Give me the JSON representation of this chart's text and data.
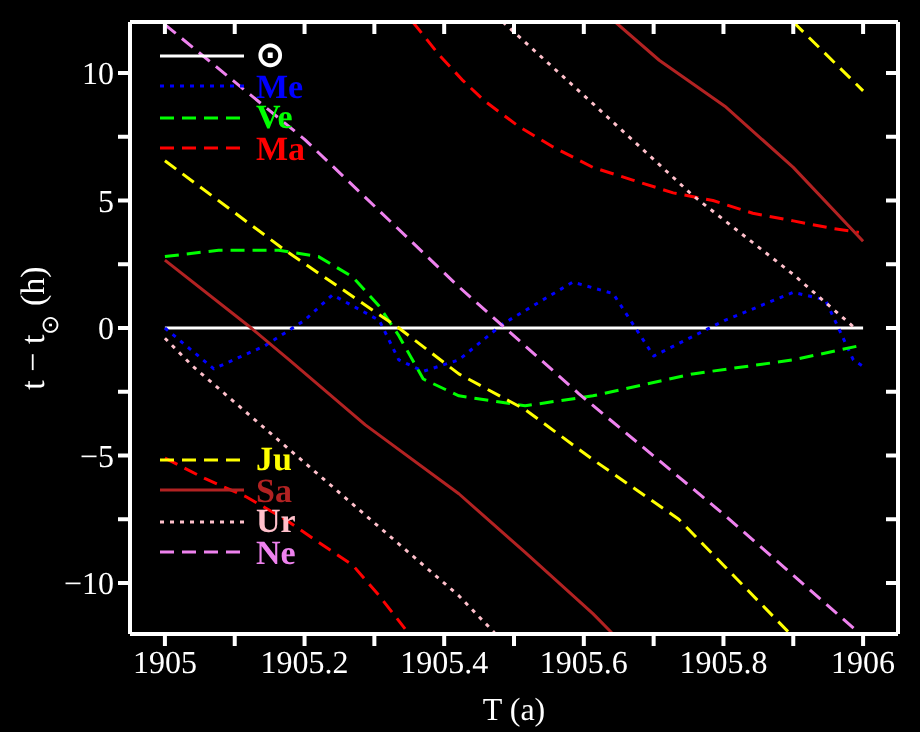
{
  "chart_data": {
    "type": "line",
    "xlabel": "T (a)",
    "ylabel": "t − t$_{⊙}$ (h)",
    "xlim": [
      1904.95,
      1906.05
    ],
    "ylim": [
      -12,
      12
    ],
    "xticks": [
      1905,
      {
        "value": 1905.1,
        "label": null
      },
      {
        "value": 1905.2,
        "label": "1905.2"
      },
      {
        "value": 1905.3,
        "label": null
      },
      {
        "value": 1905.4,
        "label": "1905.4"
      },
      {
        "value": 1905.5,
        "label": null
      },
      {
        "value": 1905.6,
        "label": "1905.6"
      },
      {
        "value": 1905.7,
        "label": null
      },
      {
        "value": 1905.8,
        "label": "1905.8"
      },
      {
        "value": 1905.9,
        "label": null
      },
      1906
    ],
    "yticks": [
      -10,
      {
        "value": -7.5,
        "label": null
      },
      -5,
      {
        "value": -2.5,
        "label": null
      },
      0,
      {
        "value": 2.5,
        "label": null
      },
      5,
      {
        "value": 7.5,
        "label": null
      },
      10
    ],
    "legend": "left",
    "marker": "none",
    "series": [
      {
        "name": "⊙",
        "color": "#ffffff",
        "line_style": "solid",
        "x": [
          1905,
          1906
        ],
        "values": [
          0,
          0
        ]
      },
      {
        "name": "Me",
        "color": "#0000ff",
        "line_style": "dotted",
        "x": [
          1905,
          1905.07,
          1905.143,
          1905.2,
          1905.24,
          1905.307,
          1905.335,
          1905.37,
          1905.421,
          1905.484,
          1905.584,
          1905.642,
          1905.7,
          1905.802,
          1905.9,
          1905.946,
          1905.986,
          1906
        ],
        "values": [
          0,
          -1.6,
          -0.7,
          0.3,
          1.3,
          0.3,
          -1.25,
          -1.7,
          -1.25,
          0.16,
          1.8,
          1.35,
          -1.1,
          0.3,
          1.4,
          1.1,
          -1.25,
          -1.5
        ]
      },
      {
        "name": "Ve",
        "color": "#00ff00",
        "line_style": "dashed",
        "x": [
          1905,
          1905.077,
          1905.163,
          1905.22,
          1905.269,
          1905.307,
          1905.335,
          1905.37,
          1905.421,
          1905.516,
          1905.613,
          1905.756,
          1905.9,
          1905.994
        ],
        "values": [
          2.8,
          3.05,
          3.05,
          2.8,
          2,
          0.85,
          -0.3,
          -2,
          -2.66,
          -3.05,
          -2.66,
          -1.8,
          -1.25,
          -0.7
        ]
      },
      {
        "name": "Ma",
        "color": "#ff0000",
        "line_style": "dashed",
        "x": [
          1905,
          1905.057,
          1905.115,
          1905.172,
          1905.22,
          1905.269,
          1905.307,
          1905.344,
          1905.35,
          1905.355,
          1905.393,
          1905.427,
          1905.458,
          1905.507,
          1905.556,
          1905.613,
          1905.67,
          1905.728,
          1905.785,
          1905.842,
          1905.9,
          1905.957,
          1905.994
        ],
        "values": [
          -5.1,
          -5.9,
          -6.6,
          -7.5,
          -8.4,
          -9.3,
          -10.5,
          -11.8,
          null,
          12,
          10.7,
          9.7,
          8.9,
          7.9,
          7.1,
          6.3,
          5.8,
          5.3,
          5,
          4.5,
          4.2,
          3.9,
          3.75
        ]
      },
      {
        "name": "Ju",
        "color": "#ffff00",
        "line_style": "dashed",
        "x": [
          1905,
          1905.172,
          1905.335,
          1905.421,
          1905.516,
          1905.613,
          1905.736,
          1905.894,
          1905.897,
          1905.9,
          1906
        ],
        "values": [
          6.56,
          3.05,
          0,
          -1.8,
          -3.2,
          -5.16,
          -7.5,
          -11.95,
          null,
          12,
          9.3
        ]
      },
      {
        "name": "Sa",
        "color": "#b22222",
        "line_style": "solid",
        "x": [
          1905,
          1905.12,
          1905.178,
          1905.287,
          1905.421,
          1905.516,
          1905.613,
          1905.64,
          1905.642,
          1905.645,
          1905.708,
          1905.802,
          1905.9,
          1906
        ],
        "values": [
          2.66,
          0.08,
          -1.25,
          -3.8,
          -6.5,
          -8.8,
          -11.2,
          -11.95,
          null,
          12,
          10.5,
          8.7,
          6.3,
          3.4
        ]
      },
      {
        "name": "Ur",
        "color": "#ffc0cb",
        "line_style": "dotted",
        "x": [
          1905,
          1905.04,
          1905.421,
          1905.472,
          1905.478,
          1905.484,
          1905.613,
          1905.756,
          1905.9,
          1905.986
        ],
        "values": [
          -0.4,
          -1.5,
          -10.5,
          -11.95,
          null,
          12,
          8.8,
          5.2,
          2.1,
          0.05
        ]
      },
      {
        "name": "Ne",
        "color": "#ee82ee",
        "line_style": "dashed",
        "x": [
          1905,
          1905.2,
          1905.42,
          1905.593,
          1905.8,
          1905.994
        ],
        "values": [
          11.9,
          7.4,
          1.64,
          -2.58,
          -7.3,
          -11.95
        ]
      }
    ]
  }
}
